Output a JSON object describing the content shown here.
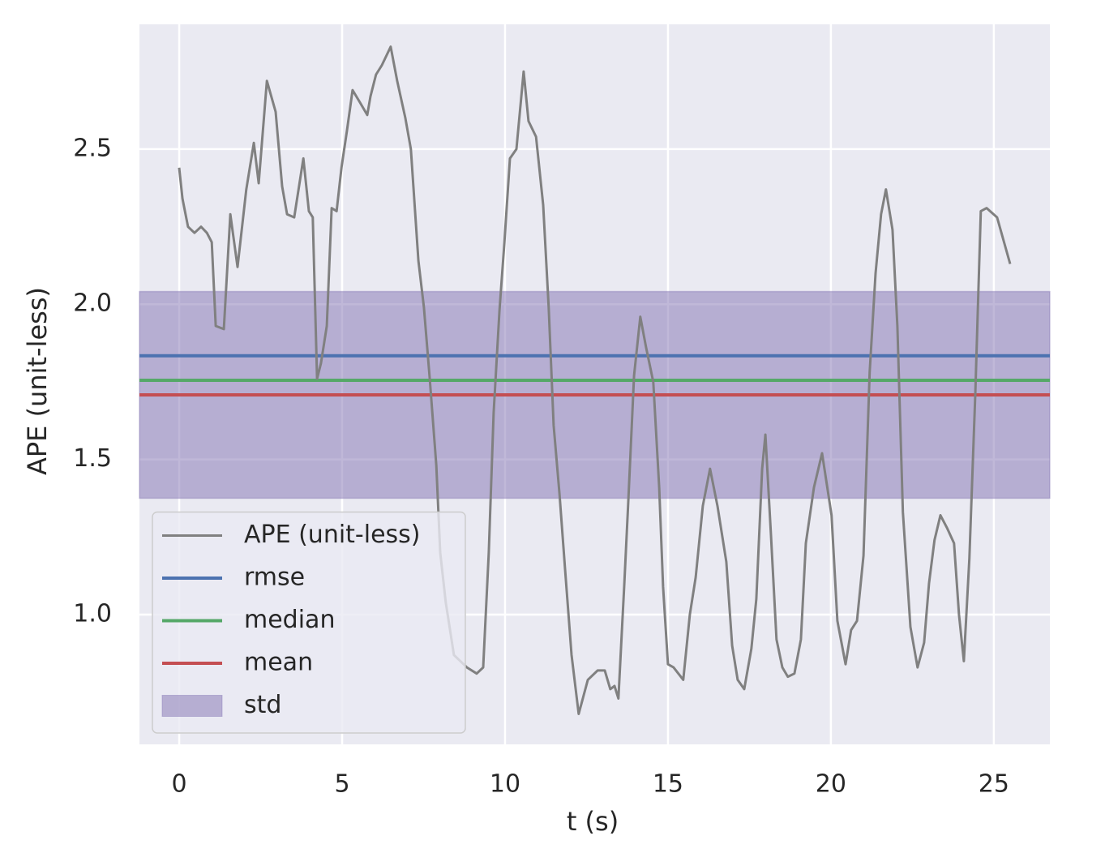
{
  "chart_data": {
    "type": "line",
    "x_label": "t (s)",
    "y_label": "APE (unit-less)",
    "xlim": [
      -1.22,
      26.72
    ],
    "ylim": [
      0.582,
      2.902
    ],
    "xticks": [
      0,
      5,
      10,
      15,
      20,
      25
    ],
    "yticks": [
      {
        "value": 1,
        "label": "1.0"
      },
      1.5,
      {
        "value": 2,
        "label": "2.0"
      },
      2.5
    ],
    "grid": true,
    "legend": "lower left",
    "series": [
      {
        "name": "APE (unit-less)",
        "kind": "line",
        "color": "#808080",
        "x": [
          0,
          0.1,
          0.27,
          0.47,
          0.67,
          0.85,
          1.0,
          1.12,
          1.37,
          1.57,
          1.79,
          2.06,
          2.29,
          2.44,
          2.69,
          2.96,
          3.16,
          3.31,
          3.53,
          3.81,
          3.98,
          4.1,
          4.23,
          4.35,
          4.53,
          4.68,
          4.83,
          4.98,
          5.15,
          5.32,
          5.55,
          5.77,
          5.87,
          6.04,
          6.22,
          6.49,
          6.69,
          6.94,
          7.11,
          7.34,
          7.51,
          7.69,
          7.89,
          8.01,
          8.18,
          8.43,
          8.83,
          9.13,
          9.33,
          9.5,
          9.65,
          9.83,
          9.98,
          10.15,
          10.35,
          10.57,
          10.72,
          10.95,
          11.17,
          11.34,
          11.49,
          11.67,
          11.84,
          12.04,
          12.26,
          12.54,
          12.84,
          13.06,
          13.23,
          13.36,
          13.48,
          13.66,
          13.78,
          13.96,
          14.15,
          14.33,
          14.55,
          14.73,
          14.85,
          15.0,
          15.17,
          15.47,
          15.67,
          15.85,
          16.07,
          16.29,
          16.52,
          16.79,
          16.97,
          17.14,
          17.34,
          17.56,
          17.71,
          17.89,
          17.99,
          18.16,
          18.33,
          18.51,
          18.68,
          18.88,
          19.08,
          19.23,
          19.48,
          19.73,
          20.02,
          20.2,
          20.45,
          20.62,
          20.8,
          21.0,
          21.19,
          21.37,
          21.54,
          21.69,
          21.89,
          22.04,
          22.21,
          22.44,
          22.66,
          22.86,
          23.01,
          23.18,
          23.36,
          23.56,
          23.78,
          23.93,
          24.08,
          24.25,
          24.43,
          24.6,
          24.78,
          25.1,
          25.5
        ],
        "values": [
          2.44,
          2.34,
          2.25,
          2.23,
          2.25,
          2.23,
          2.2,
          1.93,
          1.92,
          2.29,
          2.12,
          2.37,
          2.52,
          2.39,
          2.72,
          2.62,
          2.38,
          2.29,
          2.28,
          2.47,
          2.3,
          2.28,
          1.76,
          1.81,
          1.93,
          2.31,
          2.3,
          2.44,
          2.56,
          2.69,
          2.65,
          2.61,
          2.67,
          2.74,
          2.77,
          2.83,
          2.72,
          2.6,
          2.5,
          2.14,
          1.99,
          1.76,
          1.48,
          1.2,
          1.04,
          0.87,
          0.83,
          0.81,
          0.83,
          1.2,
          1.65,
          1.98,
          2.2,
          2.47,
          2.5,
          2.75,
          2.59,
          2.54,
          2.32,
          1.99,
          1.61,
          1.39,
          1.15,
          0.87,
          0.68,
          0.79,
          0.82,
          0.82,
          0.76,
          0.77,
          0.73,
          1.1,
          1.36,
          1.77,
          1.96,
          1.86,
          1.75,
          1.41,
          1.09,
          0.84,
          0.83,
          0.79,
          1.0,
          1.12,
          1.35,
          1.47,
          1.35,
          1.17,
          0.9,
          0.79,
          0.76,
          0.89,
          1.05,
          1.47,
          1.58,
          1.26,
          0.92,
          0.83,
          0.8,
          0.81,
          0.92,
          1.23,
          1.41,
          1.52,
          1.32,
          0.98,
          0.84,
          0.95,
          0.98,
          1.19,
          1.78,
          2.1,
          2.29,
          2.37,
          2.24,
          1.93,
          1.33,
          0.96,
          0.83,
          0.91,
          1.1,
          1.24,
          1.32,
          1.28,
          1.23,
          1.0,
          0.85,
          1.18,
          1.71,
          2.3,
          2.31,
          2.28,
          2.13
        ]
      },
      {
        "name": "rmse",
        "kind": "hline",
        "color": "#4c72b0",
        "value": 1.834
      },
      {
        "name": "median",
        "kind": "hline",
        "color": "#55a868",
        "value": 1.755
      },
      {
        "name": "mean",
        "kind": "hline",
        "color": "#c44e52",
        "value": 1.708
      },
      {
        "name": "std",
        "kind": "band",
        "color": "#8172b2",
        "range": [
          1.375,
          2.041
        ]
      }
    ]
  }
}
